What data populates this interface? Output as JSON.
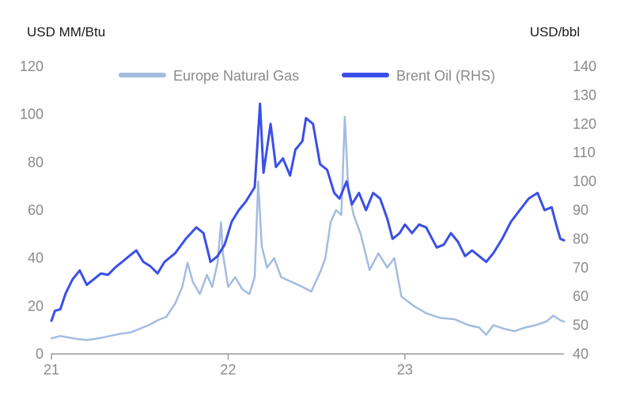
{
  "chart_data": {
    "type": "line",
    "left_axis": {
      "unit": "USD MM/Btu",
      "ylim": [
        0,
        120
      ],
      "ticks": [
        "0",
        "20",
        "40",
        "60",
        "80",
        "100",
        "120"
      ]
    },
    "right_axis": {
      "unit": "USD/bbl",
      "ylim": [
        40,
        140
      ],
      "ticks": [
        "40",
        "50",
        "60",
        "70",
        "80",
        "90",
        "100",
        "110",
        "120",
        "130",
        "140"
      ]
    },
    "x_axis": {
      "ticks": [
        "21",
        "22",
        "23"
      ],
      "tick_values": [
        2021,
        2022,
        2023
      ],
      "xlim": [
        2021,
        2023.9
      ]
    },
    "grid": false,
    "legend_position": "top",
    "series": [
      {
        "name": "Europe Natural Gas",
        "axis": "left",
        "color": "#a3bce0",
        "points": [
          [
            2021.0,
            6.5
          ],
          [
            2021.05,
            7.5
          ],
          [
            2021.1,
            6.8
          ],
          [
            2021.15,
            6.2
          ],
          [
            2021.2,
            5.8
          ],
          [
            2021.25,
            6.3
          ],
          [
            2021.3,
            7.0
          ],
          [
            2021.35,
            7.8
          ],
          [
            2021.4,
            8.5
          ],
          [
            2021.45,
            9.0
          ],
          [
            2021.5,
            10.5
          ],
          [
            2021.55,
            12.0
          ],
          [
            2021.6,
            14.0
          ],
          [
            2021.65,
            15.5
          ],
          [
            2021.7,
            21.0
          ],
          [
            2021.74,
            28.0
          ],
          [
            2021.77,
            38.0
          ],
          [
            2021.8,
            30.0
          ],
          [
            2021.84,
            25.0
          ],
          [
            2021.88,
            33.0
          ],
          [
            2021.91,
            28.0
          ],
          [
            2021.94,
            38.0
          ],
          [
            2021.96,
            55.0
          ],
          [
            2021.97,
            42.0
          ],
          [
            2022.0,
            28.0
          ],
          [
            2022.04,
            32.0
          ],
          [
            2022.08,
            27.0
          ],
          [
            2022.12,
            25.0
          ],
          [
            2022.15,
            32.0
          ],
          [
            2022.17,
            72.0
          ],
          [
            2022.19,
            45.0
          ],
          [
            2022.22,
            36.0
          ],
          [
            2022.26,
            40.0
          ],
          [
            2022.3,
            32.0
          ],
          [
            2022.36,
            30.0
          ],
          [
            2022.42,
            28.0
          ],
          [
            2022.47,
            26.0
          ],
          [
            2022.52,
            34.0
          ],
          [
            2022.55,
            40.0
          ],
          [
            2022.58,
            55.0
          ],
          [
            2022.61,
            60.0
          ],
          [
            2022.64,
            58.0
          ],
          [
            2022.66,
            99.0
          ],
          [
            2022.68,
            68.0
          ],
          [
            2022.71,
            58.0
          ],
          [
            2022.75,
            50.0
          ],
          [
            2022.8,
            35.0
          ],
          [
            2022.85,
            42.0
          ],
          [
            2022.9,
            36.0
          ],
          [
            2022.94,
            40.0
          ],
          [
            2022.98,
            24.0
          ],
          [
            2023.05,
            20.0
          ],
          [
            2023.12,
            17.0
          ],
          [
            2023.2,
            15.0
          ],
          [
            2023.28,
            14.5
          ],
          [
            2023.36,
            12.0
          ],
          [
            2023.42,
            11.0
          ],
          [
            2023.46,
            8.0
          ],
          [
            2023.5,
            12.0
          ],
          [
            2023.56,
            10.5
          ],
          [
            2023.62,
            9.5
          ],
          [
            2023.68,
            11.0
          ],
          [
            2023.74,
            12.0
          ],
          [
            2023.8,
            13.5
          ],
          [
            2023.84,
            16.0
          ],
          [
            2023.88,
            14.0
          ],
          [
            2023.9,
            13.5
          ]
        ]
      },
      {
        "name": "Brent Oil (RHS)",
        "axis": "right",
        "color": "#3a4fe8",
        "points": [
          [
            2021.0,
            51.5
          ],
          [
            2021.02,
            55.0
          ],
          [
            2021.05,
            55.5
          ],
          [
            2021.08,
            61.0
          ],
          [
            2021.12,
            66.0
          ],
          [
            2021.16,
            69.0
          ],
          [
            2021.2,
            64.0
          ],
          [
            2021.24,
            66.0
          ],
          [
            2021.28,
            68.0
          ],
          [
            2021.32,
            67.5
          ],
          [
            2021.36,
            70.0
          ],
          [
            2021.4,
            72.0
          ],
          [
            2021.44,
            74.0
          ],
          [
            2021.48,
            76.0
          ],
          [
            2021.52,
            72.0
          ],
          [
            2021.56,
            70.5
          ],
          [
            2021.6,
            68.0
          ],
          [
            2021.64,
            72.0
          ],
          [
            2021.7,
            75.0
          ],
          [
            2021.76,
            80.0
          ],
          [
            2021.82,
            84.0
          ],
          [
            2021.86,
            82.0
          ],
          [
            2021.9,
            72.0
          ],
          [
            2021.94,
            74.0
          ],
          [
            2021.98,
            78.0
          ],
          [
            2022.02,
            86.0
          ],
          [
            2022.06,
            90.0
          ],
          [
            2022.1,
            93.0
          ],
          [
            2022.15,
            98.0
          ],
          [
            2022.18,
            127.0
          ],
          [
            2022.2,
            103.0
          ],
          [
            2022.24,
            120.0
          ],
          [
            2022.27,
            105.0
          ],
          [
            2022.31,
            108.0
          ],
          [
            2022.35,
            102.0
          ],
          [
            2022.38,
            111.0
          ],
          [
            2022.42,
            114.0
          ],
          [
            2022.44,
            122.0
          ],
          [
            2022.48,
            120.0
          ],
          [
            2022.52,
            106.0
          ],
          [
            2022.56,
            104.0
          ],
          [
            2022.6,
            96.0
          ],
          [
            2022.63,
            94.0
          ],
          [
            2022.67,
            100.0
          ],
          [
            2022.7,
            92.0
          ],
          [
            2022.74,
            96.0
          ],
          [
            2022.78,
            90.0
          ],
          [
            2022.82,
            96.0
          ],
          [
            2022.86,
            94.0
          ],
          [
            2022.9,
            87.0
          ],
          [
            2022.93,
            80.0
          ],
          [
            2022.97,
            82.0
          ],
          [
            2023.0,
            85.0
          ],
          [
            2023.04,
            82.0
          ],
          [
            2023.08,
            85.0
          ],
          [
            2023.12,
            84.0
          ],
          [
            2023.18,
            77.0
          ],
          [
            2023.22,
            78.0
          ],
          [
            2023.26,
            82.0
          ],
          [
            2023.3,
            79.0
          ],
          [
            2023.34,
            74.0
          ],
          [
            2023.38,
            76.0
          ],
          [
            2023.42,
            74.0
          ],
          [
            2023.46,
            72.0
          ],
          [
            2023.5,
            75.0
          ],
          [
            2023.55,
            80.0
          ],
          [
            2023.6,
            86.0
          ],
          [
            2023.65,
            90.0
          ],
          [
            2023.7,
            94.0
          ],
          [
            2023.75,
            96.0
          ],
          [
            2023.79,
            90.0
          ],
          [
            2023.83,
            91.0
          ],
          [
            2023.86,
            84.0
          ],
          [
            2023.88,
            80.0
          ],
          [
            2023.9,
            79.5
          ]
        ]
      }
    ]
  }
}
